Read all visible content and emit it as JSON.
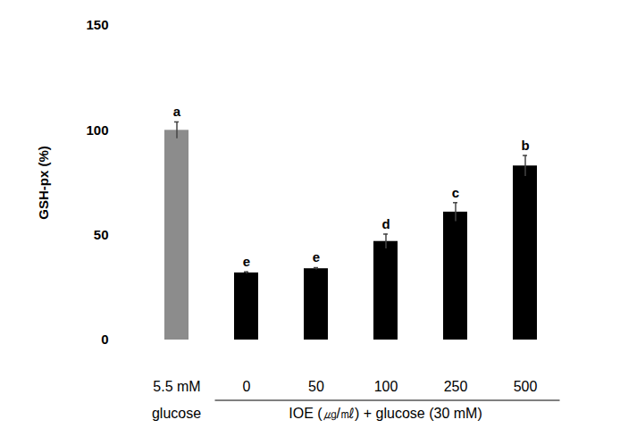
{
  "chart_data": {
    "type": "bar",
    "y_label": "GSH-px (%)",
    "categories": [
      "5.5 mM",
      "0",
      "50",
      "100",
      "250",
      "500"
    ],
    "values": [
      100,
      32,
      34,
      47,
      61,
      83
    ],
    "errors": [
      4,
      0.5,
      0.5,
      3.5,
      4.5,
      5
    ],
    "significance_letters": [
      "a",
      "e",
      "e",
      "d",
      "c",
      "b"
    ],
    "colors": [
      "#8c8c8c",
      "#000000",
      "#000000",
      "#000000",
      "#000000",
      "#000000"
    ],
    "x_group_labels": [
      {
        "text": "glucose",
        "categories": [
          "5.5 mM"
        ]
      },
      {
        "text": "IOE (㎍/㎖) + glucose (30 mM)",
        "categories": [
          "0",
          "50",
          "100",
          "250",
          "500"
        ]
      }
    ],
    "ylim": [
      0,
      150
    ],
    "yticks": [
      0,
      50,
      100,
      150
    ],
    "grid": false
  }
}
